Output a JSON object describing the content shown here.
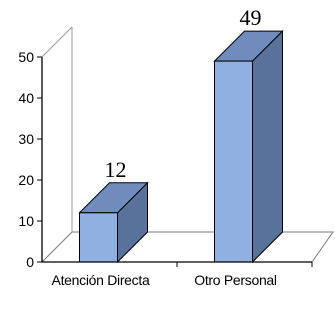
{
  "chart_data": {
    "type": "bar",
    "categories": [
      "Atención Directa",
      "Otro Personal"
    ],
    "values": [
      12,
      49
    ],
    "data_labels": [
      "12",
      "49"
    ],
    "ylim": [
      0,
      50
    ],
    "yticks": [
      "0",
      "10",
      "20",
      "30",
      "40",
      "50"
    ],
    "grid": false,
    "legend": "none",
    "three_d": true,
    "colors": {
      "bar_front": "#8fb0e0",
      "bar_side": "#58729c",
      "bar_top": "#6f8cbd",
      "bar_stroke": "#000000"
    }
  }
}
